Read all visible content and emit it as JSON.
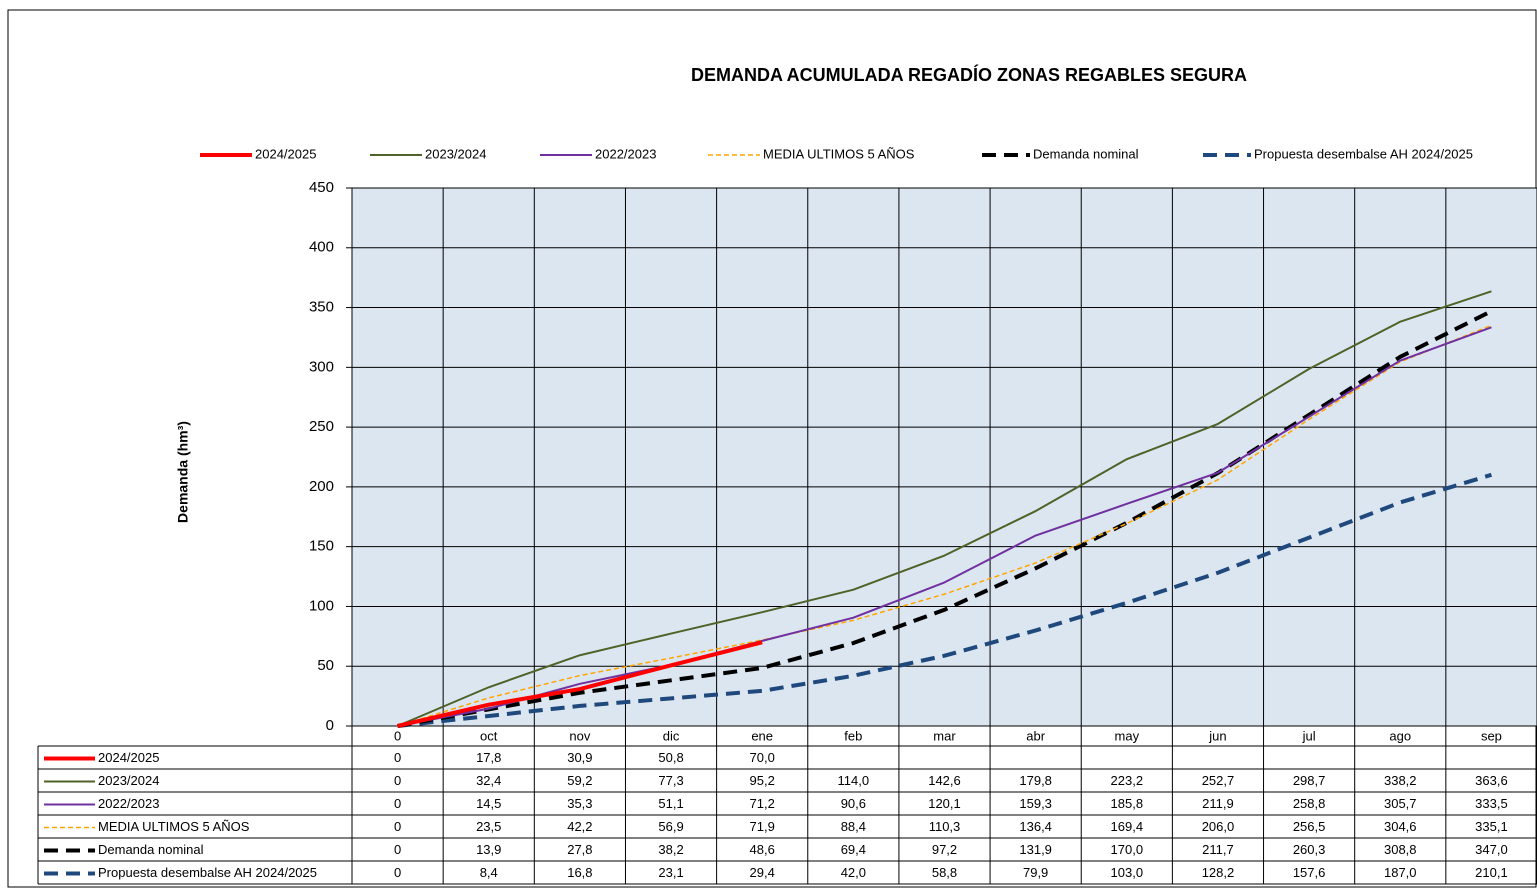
{
  "chart_data": {
    "type": "line",
    "title": "DEMANDA ACUMULADA REGADÍO ZONAS REGABLES SEGURA",
    "y_label": "Demanda (hm³)",
    "categories": [
      "0",
      "oct",
      "nov",
      "dic",
      "ene",
      "feb",
      "mar",
      "abr",
      "may",
      "jun",
      "jul",
      "ago",
      "sep"
    ],
    "ylim": [
      0,
      450
    ],
    "yticks": [
      0,
      50,
      100,
      150,
      200,
      250,
      300,
      350,
      400,
      450
    ],
    "grid": true,
    "legend": "top",
    "series": [
      {
        "name": "2024/2025",
        "color": "#ff0000",
        "dash": false,
        "values": [
          0,
          17.8,
          30.9,
          50.8,
          70.0,
          null,
          null,
          null,
          null,
          null,
          null,
          null,
          null
        ],
        "value_labels": [
          "0",
          "17,8",
          "30,9",
          "50,8",
          "70,0",
          null,
          null,
          null,
          null,
          null,
          null,
          null,
          null
        ]
      },
      {
        "name": "2023/2024",
        "color": "#4f6228",
        "dash": false,
        "values": [
          0,
          32.4,
          59.2,
          77.3,
          95.2,
          114.0,
          142.6,
          179.8,
          223.2,
          252.7,
          298.7,
          338.2,
          363.6
        ],
        "value_labels": [
          "0",
          "32,4",
          "59,2",
          "77,3",
          "95,2",
          "114,0",
          "142,6",
          "179,8",
          "223,2",
          "252,7",
          "298,7",
          "338,2",
          "363,6"
        ]
      },
      {
        "name": "2022/2023",
        "color": "#7030a0",
        "dash": false,
        "values": [
          0,
          14.5,
          35.3,
          51.1,
          71.2,
          90.6,
          120.1,
          159.3,
          185.8,
          211.9,
          258.8,
          305.7,
          333.5
        ],
        "value_labels": [
          "0",
          "14,5",
          "35,3",
          "51,1",
          "71,2",
          "90,6",
          "120,1",
          "159,3",
          "185,8",
          "211,9",
          "258,8",
          "305,7",
          "333,5"
        ]
      },
      {
        "name": "MEDIA ULTIMOS 5 AÑOS",
        "color": "#ffa500",
        "dash": true,
        "values": [
          0,
          23.5,
          42.2,
          56.9,
          71.9,
          88.4,
          110.3,
          136.4,
          169.4,
          206.0,
          256.5,
          304.6,
          335.1
        ],
        "value_labels": [
          "0",
          "23,5",
          "42,2",
          "56,9",
          "71,9",
          "88,4",
          "110,3",
          "136,4",
          "169,4",
          "206,0",
          "256,5",
          "304,6",
          "335,1"
        ]
      },
      {
        "name": "Demanda nominal",
        "color": "#000000",
        "dash": true,
        "values": [
          0,
          13.9,
          27.8,
          38.2,
          48.6,
          69.4,
          97.2,
          131.9,
          170.0,
          211.7,
          260.3,
          308.8,
          347.0
        ],
        "value_labels": [
          "0",
          "13,9",
          "27,8",
          "38,2",
          "48,6",
          "69,4",
          "97,2",
          "131,9",
          "170,0",
          "211,7",
          "260,3",
          "308,8",
          "347,0"
        ]
      },
      {
        "name": "Propuesta desembalse AH 2024/2025",
        "color": "#1f497d",
        "dash": true,
        "values": [
          0,
          8.4,
          16.8,
          23.1,
          29.4,
          42.0,
          58.8,
          79.9,
          103.0,
          128.2,
          157.6,
          187.0,
          210.1
        ],
        "value_labels": [
          "0",
          "8,4",
          "16,8",
          "23,1",
          "29,4",
          "42,0",
          "58,8",
          "79,9",
          "103,0",
          "128,2",
          "157,6",
          "187,0",
          "210,1"
        ]
      }
    ]
  }
}
